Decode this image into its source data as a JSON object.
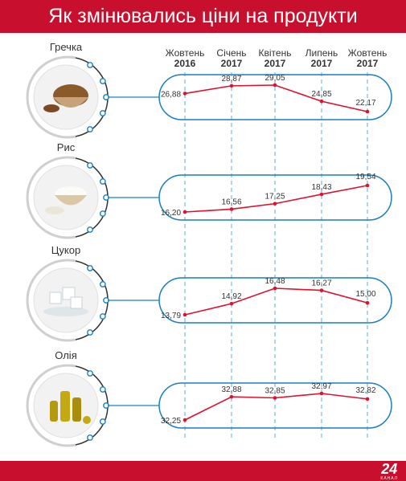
{
  "title": "Як змінювались ціни на продукти",
  "logo": {
    "number": "24",
    "text": "КАНАЛ"
  },
  "colors": {
    "accent": "#c8102e",
    "line": "#e0102e",
    "frame": "#1a7fc1",
    "dash": "#5aaee0"
  },
  "periods": [
    {
      "month": "Жовтень",
      "year": "2016"
    },
    {
      "month": "Січень",
      "year": "2017"
    },
    {
      "month": "Квітень",
      "year": "2017"
    },
    {
      "month": "Липень",
      "year": "2017"
    },
    {
      "month": "Жовтень",
      "year": "2017"
    }
  ],
  "products": [
    {
      "name": "Гречка",
      "icon": "buckwheat-bowl-icon",
      "labels": [
        "26,88",
        "28,87",
        "29,05",
        "24,85",
        "22,17"
      ]
    },
    {
      "name": "Рис",
      "icon": "rice-bowl-icon",
      "labels": [
        "16,20",
        "16,56",
        "17,25",
        "18,43",
        "19,54"
      ]
    },
    {
      "name": "Цукор",
      "icon": "sugar-cubes-icon",
      "labels": [
        "13,79",
        "14,92",
        "16,48",
        "16,27",
        "15,00"
      ]
    },
    {
      "name": "Олія",
      "icon": "oil-bottles-icon",
      "labels": [
        "32,25",
        "32,88",
        "32,85",
        "32,97",
        "32,82"
      ]
    }
  ],
  "chart_data": [
    {
      "type": "line",
      "title": "Гречка",
      "categories": [
        "Жовтень 2016",
        "Січень 2017",
        "Квітень 2017",
        "Липень 2017",
        "Жовтень 2017"
      ],
      "values": [
        26.88,
        28.87,
        29.05,
        24.85,
        22.17
      ]
    },
    {
      "type": "line",
      "title": "Рис",
      "categories": [
        "Жовтень 2016",
        "Січень 2017",
        "Квітень 2017",
        "Липень 2017",
        "Жовтень 2017"
      ],
      "values": [
        16.2,
        16.56,
        17.25,
        18.43,
        19.54
      ]
    },
    {
      "type": "line",
      "title": "Цукор",
      "categories": [
        "Жовтень 2016",
        "Січень 2017",
        "Квітень 2017",
        "Липень 2017",
        "Жовтень 2017"
      ],
      "values": [
        13.79,
        14.92,
        16.48,
        16.27,
        15.0
      ]
    },
    {
      "type": "line",
      "title": "Олія",
      "categories": [
        "Жовтень 2016",
        "Січень 2017",
        "Квітень 2017",
        "Липень 2017",
        "Жовтень 2017"
      ],
      "values": [
        32.25,
        32.88,
        32.85,
        32.97,
        32.82
      ]
    }
  ]
}
